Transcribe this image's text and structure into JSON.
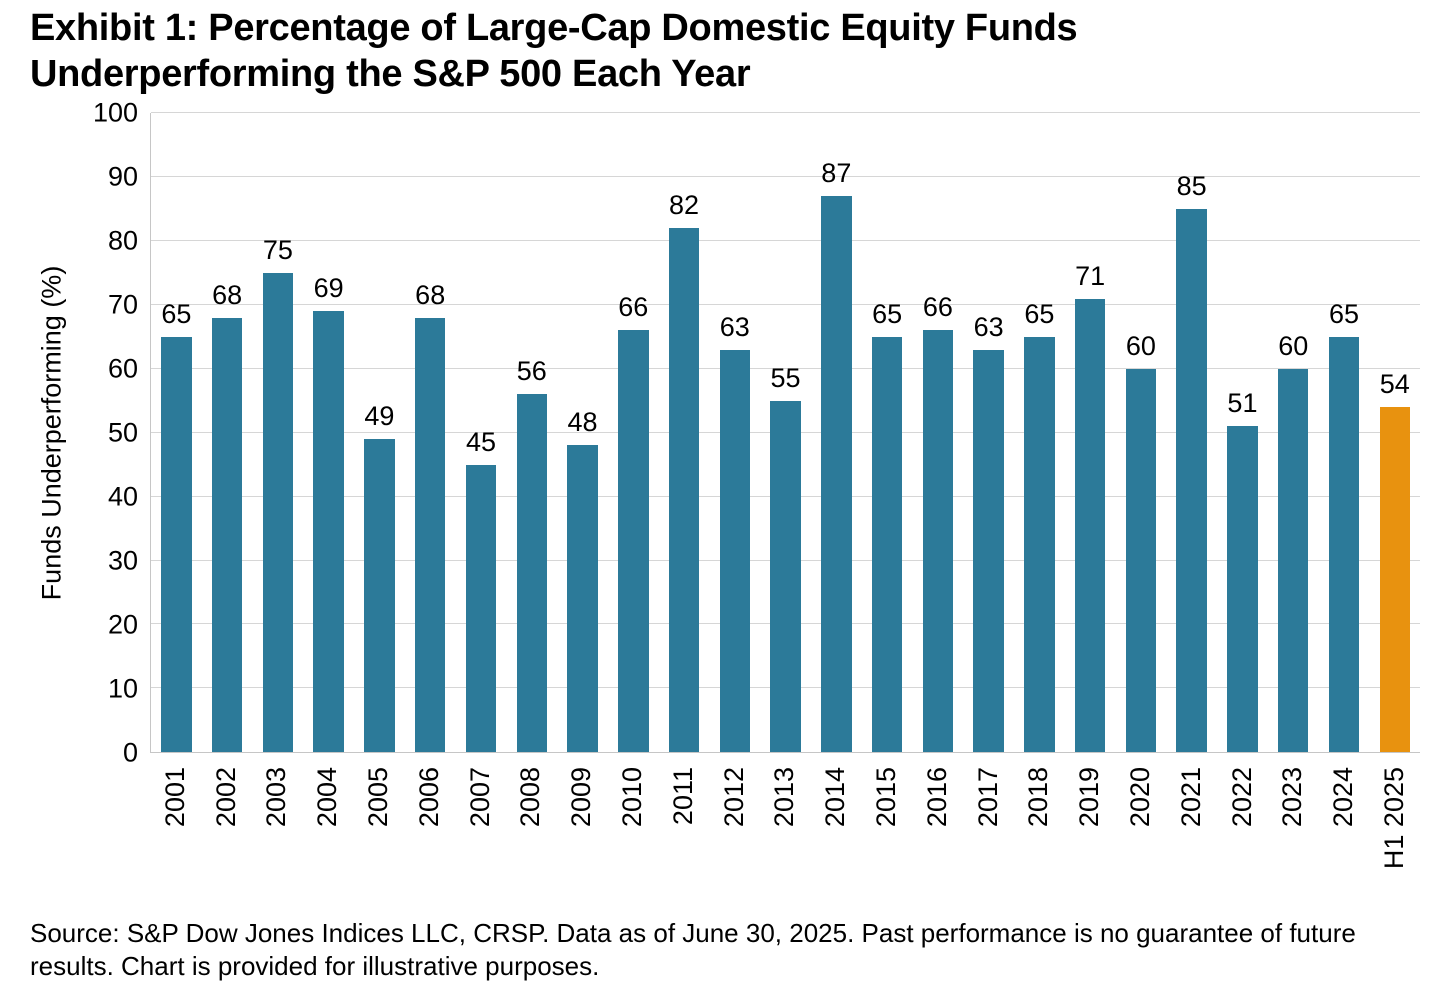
{
  "title": "Exhibit 1: Percentage of Large-Cap Domestic Equity Funds Underperforming the S&P 500 Each Year",
  "chart_data": {
    "type": "bar",
    "title": "Exhibit 1: Percentage of Large-Cap Domestic Equity Funds Underperforming the S&P 500 Each Year",
    "categories": [
      "2001",
      "2002",
      "2003",
      "2004",
      "2005",
      "2006",
      "2007",
      "2008",
      "2009",
      "2010",
      "2011",
      "2012",
      "2013",
      "2014",
      "2015",
      "2016",
      "2017",
      "2018",
      "2019",
      "2020",
      "2021",
      "2022",
      "2023",
      "2024",
      "H1 2025"
    ],
    "values": [
      65,
      68,
      75,
      69,
      49,
      68,
      45,
      56,
      48,
      66,
      82,
      63,
      55,
      87,
      65,
      66,
      63,
      65,
      71,
      60,
      85,
      51,
      60,
      65,
      54
    ],
    "xlabel": "",
    "ylabel": "Funds Underperforming (%)",
    "ylim": [
      0,
      100
    ],
    "ytick_interval": 10,
    "grid": true,
    "legend_position": "none",
    "bar_color": "#2C7A99",
    "highlight_color": "#E8920F",
    "highlight_category": "H1 2025",
    "gridline_color": "#d6d6d6"
  },
  "footer": {
    "text": "Source: S&P Dow Jones Indices LLC, CRSP.  Data as of June 30, 2025.  Past performance is no guarantee of future results.  Chart is provided for illustrative purposes."
  }
}
